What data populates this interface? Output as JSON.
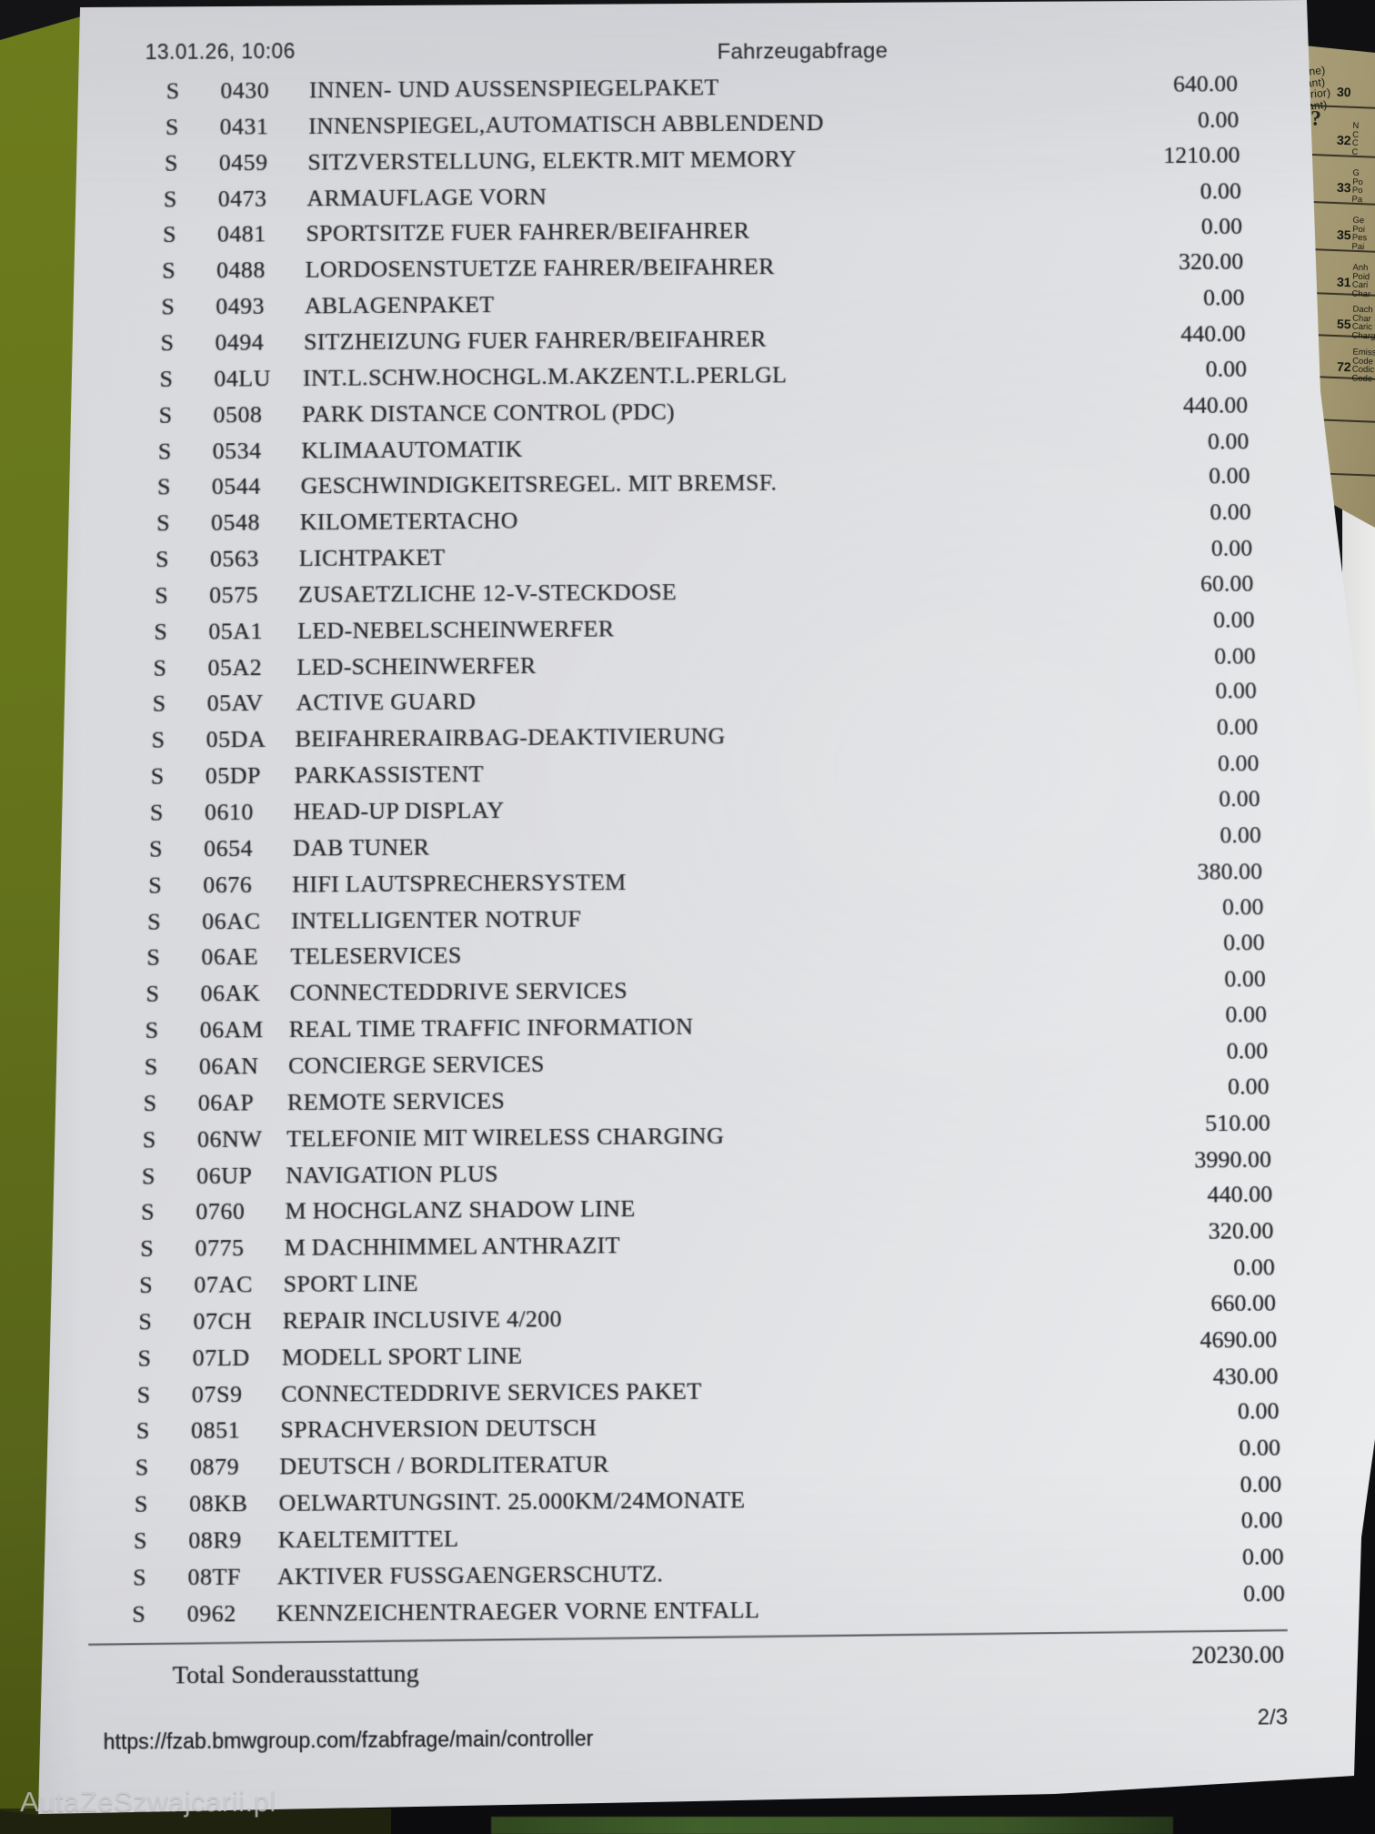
{
  "photo": {
    "watermark": "AutaZeSzwajcarii.pl",
    "colors": {
      "background": "#101012",
      "paper": "#dee0e3",
      "olive_folder": "#66751b",
      "bottom_green_strip": "#3c5628",
      "side_form_tan": "#a1966f",
      "ink": "#2a2a2f"
    }
  },
  "document": {
    "header": {
      "datetime": "13.01.26, 10:06",
      "title": "Fahrzeugabfrage"
    },
    "table": {
      "rows": [
        {
          "flag": "S",
          "code": "0430",
          "description": "INNEN- UND AUSSENSPIEGELPAKET",
          "price": "640.00"
        },
        {
          "flag": "S",
          "code": "0431",
          "description": "INNENSPIEGEL,AUTOMATISCH ABBLENDEND",
          "price": "0.00"
        },
        {
          "flag": "S",
          "code": "0459",
          "description": "SITZVERSTELLUNG, ELEKTR.MIT MEMORY",
          "price": "1210.00"
        },
        {
          "flag": "S",
          "code": "0473",
          "description": "ARMAUFLAGE VORN",
          "price": "0.00"
        },
        {
          "flag": "S",
          "code": "0481",
          "description": "SPORTSITZE FUER FAHRER/BEIFAHRER",
          "price": "0.00"
        },
        {
          "flag": "S",
          "code": "0488",
          "description": "LORDOSENSTUETZE FAHRER/BEIFAHRER",
          "price": "320.00"
        },
        {
          "flag": "S",
          "code": "0493",
          "description": "ABLAGENPAKET",
          "price": "0.00"
        },
        {
          "flag": "S",
          "code": "0494",
          "description": "SITZHEIZUNG FUER FAHRER/BEIFAHRER",
          "price": "440.00"
        },
        {
          "flag": "S",
          "code": "04LU",
          "description": "INT.L.SCHW.HOCHGL.M.AKZENT.L.PERLGL",
          "price": "0.00"
        },
        {
          "flag": "S",
          "code": "0508",
          "description": "PARK DISTANCE CONTROL (PDC)",
          "price": "440.00"
        },
        {
          "flag": "S",
          "code": "0534",
          "description": "KLIMAAUTOMATIK",
          "price": "0.00"
        },
        {
          "flag": "S",
          "code": "0544",
          "description": "GESCHWINDIGKEITSREGEL. MIT BREMSF.",
          "price": "0.00"
        },
        {
          "flag": "S",
          "code": "0548",
          "description": "KILOMETERTACHO",
          "price": "0.00"
        },
        {
          "flag": "S",
          "code": "0563",
          "description": "LICHTPAKET",
          "price": "0.00"
        },
        {
          "flag": "S",
          "code": "0575",
          "description": "ZUSAETZLICHE 12-V-STECKDOSE",
          "price": "60.00"
        },
        {
          "flag": "S",
          "code": "05A1",
          "description": "LED-NEBELSCHEINWERFER",
          "price": "0.00"
        },
        {
          "flag": "S",
          "code": "05A2",
          "description": "LED-SCHEINWERFER",
          "price": "0.00"
        },
        {
          "flag": "S",
          "code": "05AV",
          "description": "ACTIVE GUARD",
          "price": "0.00"
        },
        {
          "flag": "S",
          "code": "05DA",
          "description": "BEIFAHRERAIRBAG-DEAKTIVIERUNG",
          "price": "0.00"
        },
        {
          "flag": "S",
          "code": "05DP",
          "description": "PARKASSISTENT",
          "price": "0.00"
        },
        {
          "flag": "S",
          "code": "0610",
          "description": "HEAD-UP DISPLAY",
          "price": "0.00"
        },
        {
          "flag": "S",
          "code": "0654",
          "description": "DAB TUNER",
          "price": "0.00"
        },
        {
          "flag": "S",
          "code": "0676",
          "description": "HIFI LAUTSPRECHERSYSTEM",
          "price": "380.00"
        },
        {
          "flag": "S",
          "code": "06AC",
          "description": "INTELLIGENTER NOTRUF",
          "price": "0.00"
        },
        {
          "flag": "S",
          "code": "06AE",
          "description": "TELESERVICES",
          "price": "0.00"
        },
        {
          "flag": "S",
          "code": "06AK",
          "description": "CONNECTEDDRIVE SERVICES",
          "price": "0.00"
        },
        {
          "flag": "S",
          "code": "06AM",
          "description": "REAL TIME TRAFFIC INFORMATION",
          "price": "0.00"
        },
        {
          "flag": "S",
          "code": "06AN",
          "description": "CONCIERGE SERVICES",
          "price": "0.00"
        },
        {
          "flag": "S",
          "code": "06AP",
          "description": "REMOTE SERVICES",
          "price": "0.00"
        },
        {
          "flag": "S",
          "code": "06NW",
          "description": "TELEFONIE MIT WIRELESS CHARGING",
          "price": "510.00"
        },
        {
          "flag": "S",
          "code": "06UP",
          "description": "NAVIGATION PLUS",
          "price": "3990.00"
        },
        {
          "flag": "S",
          "code": "0760",
          "description": "M HOCHGLANZ SHADOW LINE",
          "price": "440.00"
        },
        {
          "flag": "S",
          "code": "0775",
          "description": "M DACHHIMMEL ANTHRAZIT",
          "price": "320.00"
        },
        {
          "flag": "S",
          "code": "07AC",
          "description": "SPORT LINE",
          "price": "0.00"
        },
        {
          "flag": "S",
          "code": "07CH",
          "description": "REPAIR INCLUSIVE 4/200",
          "price": "660.00"
        },
        {
          "flag": "S",
          "code": "07LD",
          "description": "MODELL SPORT LINE",
          "price": "4690.00"
        },
        {
          "flag": "S",
          "code": "07S9",
          "description": "CONNECTEDDRIVE SERVICES PAKET",
          "price": "430.00"
        },
        {
          "flag": "S",
          "code": "0851",
          "description": "SPRACHVERSION DEUTSCH",
          "price": "0.00"
        },
        {
          "flag": "S",
          "code": "0879",
          "description": "DEUTSCH / BORDLITERATUR",
          "price": "0.00"
        },
        {
          "flag": "S",
          "code": "08KB",
          "description": "OELWARTUNGSINT. 25.000KM/24MONATE",
          "price": "0.00"
        },
        {
          "flag": "S",
          "code": "08R9",
          "description": "KAELTEMITTEL",
          "price": "0.00"
        },
        {
          "flag": "S",
          "code": "08TF",
          "description": "AKTIVER FUSSGAENGERSCHUTZ.",
          "price": "0.00"
        },
        {
          "flag": "S",
          "code": "0962",
          "description": "KENNZEICHENTRAEGER VORNE ENTFALL",
          "price": "0.00"
        }
      ]
    },
    "total": {
      "label": "Total Sonderausstattung",
      "value": "20230.00"
    },
    "footer": {
      "url": "https://fzab.bmwgroup.com/fzabfrage/main/controller",
      "page": "2/3"
    }
  },
  "side_document": {
    "top_fragments": "orne)\nvant)\nterior)\nvant)",
    "question_mark": "?",
    "entries": [
      {
        "num": "30",
        "lines": [
          "",
          "",
          "",
          ""
        ]
      },
      {
        "num": "32",
        "lines": [
          "N",
          "C",
          "C",
          "C"
        ]
      },
      {
        "num": "33",
        "lines": [
          "G",
          "Po",
          "Po",
          "Pa"
        ]
      },
      {
        "num": "35",
        "lines": [
          "Ge",
          "Poi",
          "Pes",
          "Pai"
        ]
      },
      {
        "num": "31",
        "lines": [
          "Anh",
          "Poid",
          "Cari",
          "Char"
        ]
      },
      {
        "num": "55",
        "lines": [
          "Dach",
          "Char",
          "Caric",
          "Charg"
        ]
      },
      {
        "num": "72",
        "lines": [
          "Emiss",
          "Code",
          "Codic",
          "Code ("
        ]
      }
    ]
  }
}
